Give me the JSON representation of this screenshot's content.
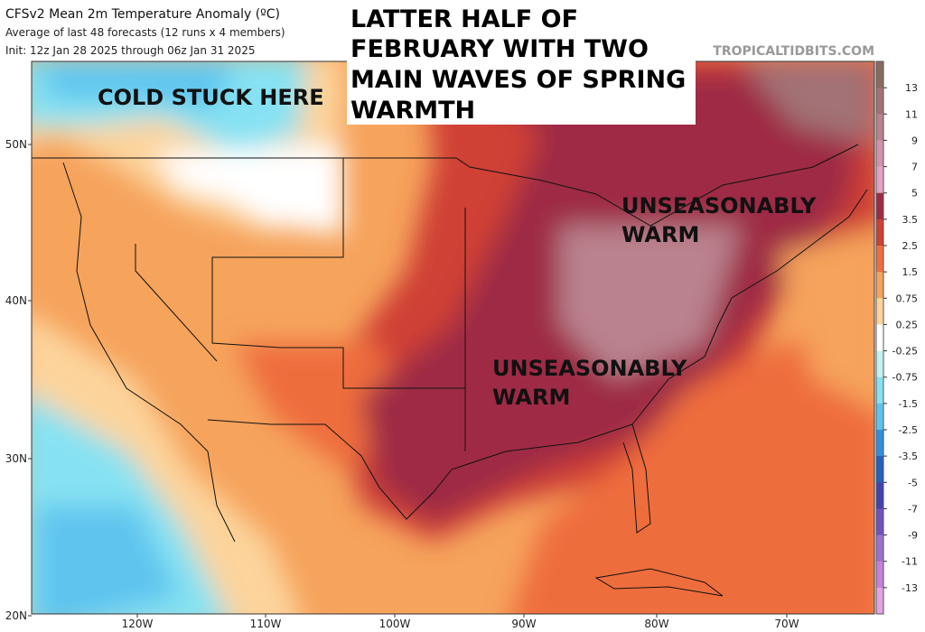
{
  "header": {
    "title": "CFSv2 Mean 2m Temperature Anomaly (ºC)",
    "subtitle": "Average of last 48 forecasts (12 runs x 4 members)",
    "init": "Init: 12z Jan 28 2025 through 06z Jan 31 2025",
    "source": "TROPICALTIDBITS.COM"
  },
  "headline": [
    "LATTER HALF OF",
    "FEBRUARY WITH TWO",
    "MAIN WAVES OF SPRING",
    "WARMTH"
  ],
  "annotations": {
    "cold": "COLD STUCK HERE",
    "warm_north": [
      "UNSEASONABLY",
      "WARM"
    ],
    "warm_south": [
      "UNSEASONABLY",
      "WARM"
    ]
  },
  "latitude_labels": [
    "50N",
    "40N",
    "30N",
    "20N"
  ],
  "longitude_labels": [
    "120W",
    "110W",
    "100W",
    "90W",
    "80W",
    "70W"
  ],
  "colorbar": {
    "labels": [
      "13",
      "11",
      "9",
      "7",
      "5",
      "3.5",
      "2.5",
      "1.5",
      "0.75",
      "0.25",
      "-0.25",
      "-0.75",
      "-1.5",
      "-2.5",
      "-3.5",
      "-5",
      "-7",
      "-9",
      "-11",
      "-13"
    ],
    "colors": [
      "#8a6a5e",
      "#a27276",
      "#b9828e",
      "#d392ac",
      "#e6a2c2",
      "#9e2a44",
      "#cf3f34",
      "#ee6d3e",
      "#f6a35c",
      "#fcd49c",
      "#ffffff",
      "#c4f2f4",
      "#86e2f2",
      "#5ec4ee",
      "#3190de",
      "#2460bf",
      "#4242ae",
      "#7250c0",
      "#a070d0",
      "#c682d6",
      "#e2a4e2"
    ]
  }
}
